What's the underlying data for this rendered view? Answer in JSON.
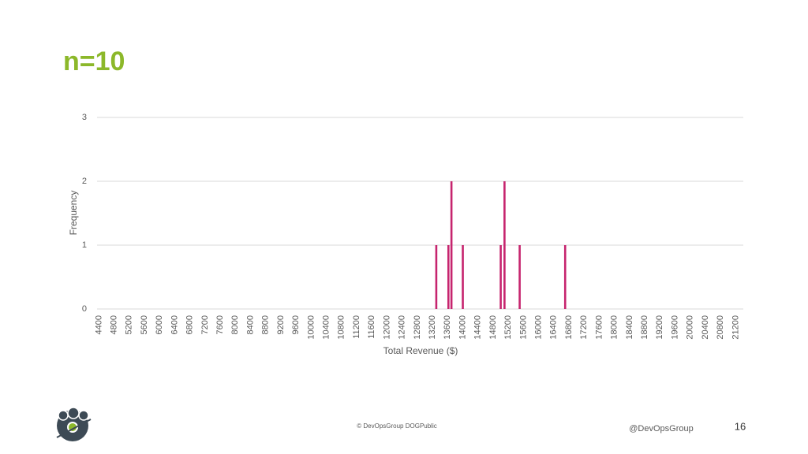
{
  "slide": {
    "title": "n=10",
    "footer": "© DevOpsGroup DOGPublic",
    "handle": "@DevOpsGroup",
    "page_number": "16"
  },
  "chart_data": {
    "type": "bar",
    "x_label": "Total Revenue ($)",
    "y_label": "Frequency",
    "x": [
      13300,
      13620,
      13700,
      14000,
      15000,
      15100,
      15500,
      16700
    ],
    "values": [
      1,
      1,
      2,
      1,
      1,
      2,
      1,
      1
    ],
    "color": "#c6246e",
    "xlim": [
      4350,
      21400
    ],
    "xticks": [
      4400,
      4800,
      5200,
      5600,
      6000,
      6400,
      6800,
      7200,
      7600,
      8000,
      8400,
      8800,
      9200,
      9600,
      10000,
      10400,
      10800,
      11200,
      11600,
      12000,
      12400,
      12800,
      13200,
      13600,
      14000,
      14400,
      14800,
      15200,
      15600,
      16000,
      16400,
      16800,
      17200,
      17600,
      18000,
      18400,
      18800,
      19200,
      19600,
      20000,
      20400,
      20800,
      21200
    ],
    "ylim": [
      0,
      3
    ],
    "yticks": [
      0,
      1,
      2,
      3
    ],
    "grid": true
  }
}
